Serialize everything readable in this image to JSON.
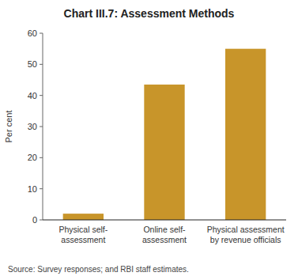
{
  "chart_data": {
    "type": "bar",
    "title": "Chart III.7: Assessment Methods",
    "categories": [
      "Physical self-\nassessment",
      "Online self-\nassessment",
      "Physical assessment\nby revenue officials"
    ],
    "values": [
      2.0,
      43.5,
      55.0
    ],
    "color": "#C8952A",
    "ylabel": "Per cent",
    "ylim": [
      0,
      60
    ],
    "yticks": [
      0,
      10,
      20,
      30,
      40,
      50,
      60
    ],
    "grid": false,
    "source": "Source: Survey responses; and RBI staff estimates."
  }
}
